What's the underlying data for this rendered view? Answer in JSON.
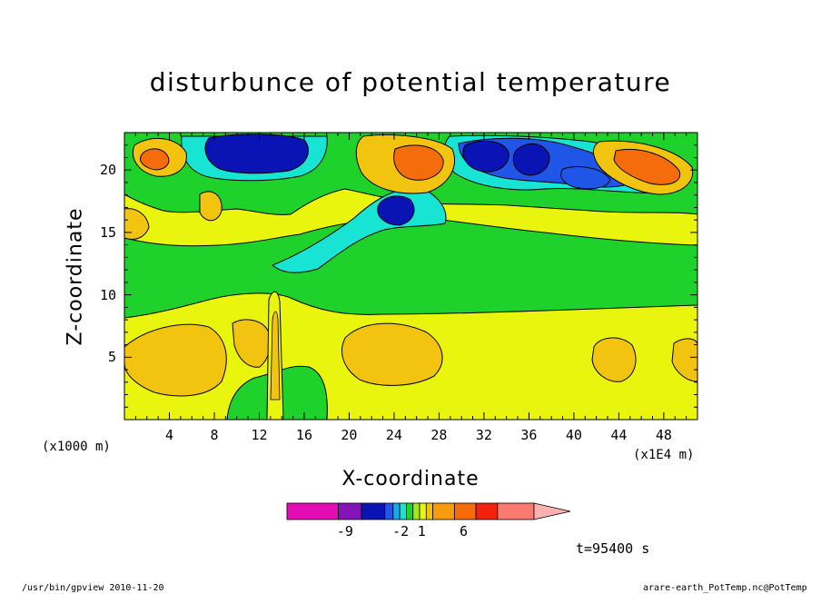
{
  "chart_data": {
    "type": "heatmap",
    "title": "disturbunce of potential temperature",
    "xlabel": "X-coordinate",
    "ylabel": "Z-coordinate",
    "x_unit_left": "(x1000 m)",
    "x_unit_right": "(x1E4 m)",
    "xlim": [
      0,
      51
    ],
    "ylim": [
      0,
      23
    ],
    "x_ticks": [
      4,
      8,
      12,
      16,
      20,
      24,
      28,
      32,
      36,
      40,
      44,
      48
    ],
    "y_ticks": [
      5,
      10,
      15,
      20
    ],
    "time_label": "t=95400 s",
    "colorbar": {
      "labels": [
        {
          "text": "-9",
          "pos": 0.235
        },
        {
          "text": "-2",
          "pos": 0.46
        },
        {
          "text": "1",
          "pos": 0.545
        },
        {
          "text": "6",
          "pos": 0.715
        }
      ],
      "colors": [
        "#e30cb4",
        "#8214b8",
        "#0a14b4",
        "#1f56e8",
        "#16a8f0",
        "#17e4d2",
        "#1ed12b",
        "#a0e81a",
        "#eaf50e",
        "#f3c40f",
        "#f79b0f",
        "#f56c0a",
        "#f2220c",
        "#fb7a70",
        "#fcb0b0"
      ]
    },
    "regions": [
      {
        "level": "positive-weak",
        "color": "#f3c40f"
      },
      {
        "level": "neutral",
        "color": "#eaf50e"
      },
      {
        "level": "negative-weak",
        "color": "#1ed12b"
      },
      {
        "level": "negative-mid",
        "color": "#17e4d2"
      },
      {
        "level": "negative-strong",
        "color": "#0a14b4"
      },
      {
        "level": "positive-strong",
        "color": "#f56c0a"
      }
    ]
  },
  "footer": {
    "left": "/usr/bin/gpview  2010-11-20",
    "right": "arare-earth_PotTemp.nc@PotTemp"
  }
}
